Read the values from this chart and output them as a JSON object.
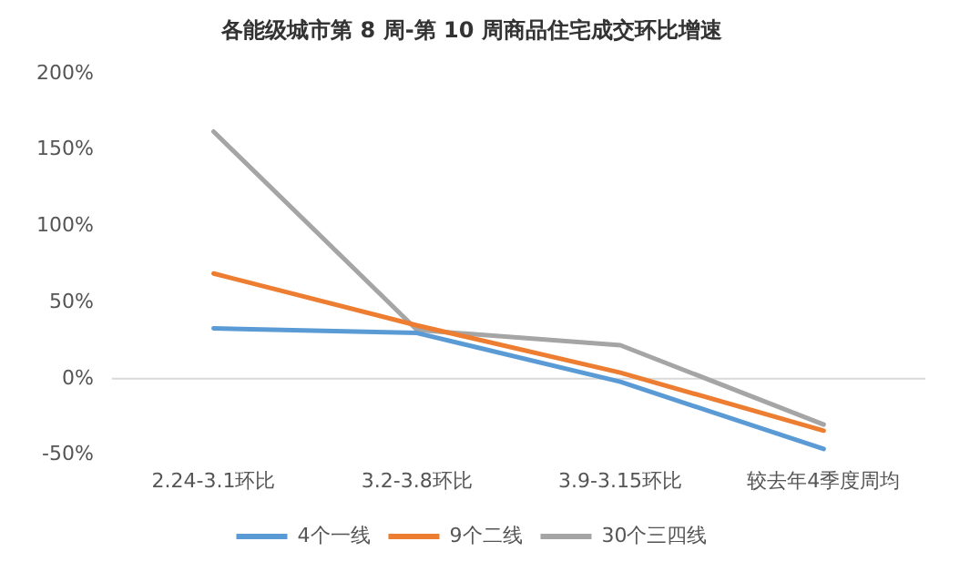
{
  "chart_data": {
    "type": "line",
    "title": "各能级城市第 8 周-第 10 周商品住宅成交环比增速",
    "categories": [
      "2.24-3.1环比",
      "3.2-3.8环比",
      "3.9-3.15环比",
      "较去年4季度周均"
    ],
    "series": [
      {
        "name": "4个一线",
        "color": "#5b9bd5",
        "values": [
          33,
          30,
          -2,
          -46
        ]
      },
      {
        "name": "9个二线",
        "color": "#ed7d31",
        "values": [
          69,
          35,
          4,
          -34
        ]
      },
      {
        "name": "30个三四线",
        "color": "#a5a5a5",
        "values": [
          162,
          32,
          22,
          -30
        ]
      }
    ],
    "ylim": [
      -50,
      200
    ],
    "yticks": [
      {
        "value": -50,
        "label": "-50%"
      },
      {
        "value": 0,
        "label": "0%"
      },
      {
        "value": 50,
        "label": "50%"
      },
      {
        "value": 100,
        "label": "100%"
      },
      {
        "value": 150,
        "label": "150%"
      },
      {
        "value": 200,
        "label": "200%"
      }
    ],
    "ref_lines": [
      {
        "axis": "y",
        "value": 0,
        "color": "#d9d9d9"
      }
    ],
    "grid": false,
    "legend": "bottom",
    "marker": "none",
    "line_style": "solid"
  }
}
